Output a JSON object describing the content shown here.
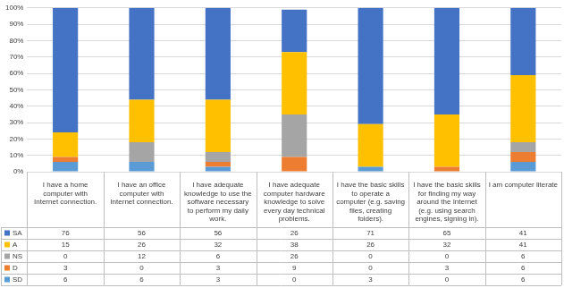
{
  "chart_data": {
    "type": "bar",
    "stacked": true,
    "grid": true,
    "data_labels": true,
    "categories": [
      "I have a home computer with Internet connection.",
      "I have an office computer with Internet connection.",
      "I have adequate knowledge to use the software necessary to perform my daily work.",
      "I have adequate computer hardware knowledge to solve every day technical problems.",
      "I have the basic skills to operate a computer (e.g. saving files, creating folders).",
      "I have the basic skills for finding my way around the Internet (e.g. using search engines, signing in).",
      "I am computer literate"
    ],
    "series": [
      {
        "name": "SA",
        "color": "#4472c4",
        "values": [
          76,
          56,
          56,
          26,
          71,
          65,
          41
        ]
      },
      {
        "name": "A",
        "color": "#ffc000",
        "values": [
          15,
          26,
          32,
          38,
          26,
          32,
          41
        ]
      },
      {
        "name": "NS",
        "color": "#a5a5a5",
        "values": [
          0,
          12,
          6,
          26,
          0,
          0,
          6
        ]
      },
      {
        "name": "D",
        "color": "#ed7d31",
        "values": [
          3,
          0,
          3,
          9,
          0,
          3,
          6
        ]
      },
      {
        "name": "SD",
        "color": "#5b9bd5",
        "values": [
          6,
          6,
          3,
          0,
          3,
          0,
          6
        ]
      }
    ],
    "ylim": [
      0,
      100
    ],
    "yticks": [
      {
        "value": 0,
        "label": "0%"
      },
      {
        "value": 10,
        "label": "10%"
      },
      {
        "value": 20,
        "label": "20%"
      },
      {
        "value": 30,
        "label": "30%"
      },
      {
        "value": 40,
        "label": "40%"
      },
      {
        "value": 50,
        "label": "50%"
      },
      {
        "value": 60,
        "label": "60%"
      },
      {
        "value": 70,
        "label": "70%"
      },
      {
        "value": 80,
        "label": "80%"
      },
      {
        "value": 90,
        "label": "90%"
      },
      {
        "value": 100,
        "label": "100%"
      }
    ]
  }
}
